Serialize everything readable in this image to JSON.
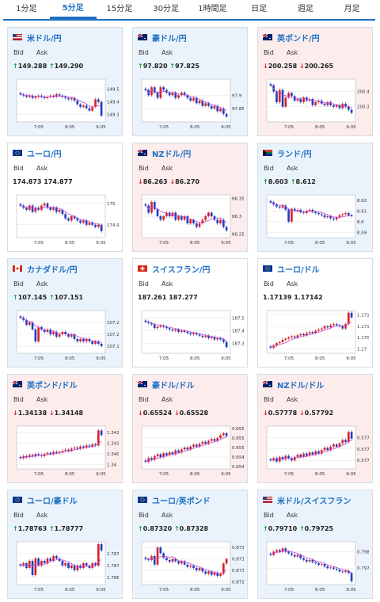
{
  "tabs": [
    {
      "label": "1分足",
      "active": false
    },
    {
      "label": "5分足",
      "active": true
    },
    {
      "label": "15分足",
      "active": false
    },
    {
      "label": "30分足",
      "active": false
    },
    {
      "label": "1時間足",
      "active": false
    },
    {
      "label": "日足",
      "active": false
    },
    {
      "label": "週足",
      "active": false
    },
    {
      "label": "月足",
      "active": false
    }
  ],
  "labels": {
    "bid": "Bid",
    "ask": "Ask"
  },
  "colors": {
    "up_bg": "#eaf3fb",
    "down_bg": "#fcecec",
    "bull": "#d9202a",
    "bear": "#1f3fbf",
    "ma": "#c54bd0",
    "up_arrow": "#1a9b3c",
    "down_arrow": "#d9202a"
  },
  "pairs": [
    {
      "name": "米ドル/円",
      "flag": "us-jp-flag-icon",
      "trend": "up",
      "bid": "149.288",
      "ask": "149.290",
      "chart_data": {
        "type": "candlestick",
        "x_ticks": [
          "7:05",
          "8:05",
          "9:05"
        ],
        "y_ticks": [
          "149.5",
          "149.4",
          "149.3"
        ],
        "y_range": [
          149.24,
          149.58
        ],
        "close": [
          149.46,
          149.45,
          149.44,
          149.45,
          149.43,
          149.44,
          149.45,
          149.44,
          149.43,
          149.44,
          149.45,
          149.44,
          149.46,
          149.45,
          149.44,
          149.43,
          149.42,
          149.43,
          149.41,
          149.38,
          149.36,
          149.37,
          149.35,
          149.33,
          149.36,
          149.42,
          149.4,
          149.29
        ]
      }
    },
    {
      "name": "豪ドル/円",
      "flag": "au-jp-flag-icon",
      "trend": "up",
      "bid": "97.820",
      "ask": "97.825",
      "chart_data": {
        "type": "candlestick",
        "x_ticks": [
          "7:05",
          "8:05",
          "9:05"
        ],
        "y_ticks": [
          "97.9",
          "97.85"
        ],
        "y_range": [
          97.8,
          97.96
        ],
        "close": [
          97.92,
          97.9,
          97.93,
          97.91,
          97.89,
          97.93,
          97.92,
          97.91,
          97.9,
          97.91,
          97.89,
          97.9,
          97.91,
          97.9,
          97.89,
          97.88,
          97.89,
          97.87,
          97.88,
          97.86,
          97.87,
          97.86,
          97.85,
          97.86,
          97.84,
          97.85,
          97.83,
          97.82
        ]
      }
    },
    {
      "name": "英ポンド/円",
      "flag": "gb-jp-flag-icon",
      "trend": "down",
      "bid": "200.258",
      "ask": "200.265",
      "chart_data": {
        "type": "candlestick",
        "x_ticks": [
          "7:05",
          "8:05",
          "9:05"
        ],
        "y_ticks": [
          "200.4",
          "200.3"
        ],
        "y_range": [
          200.2,
          200.48
        ],
        "close": [
          200.44,
          200.4,
          200.33,
          200.41,
          200.3,
          200.36,
          200.39,
          200.37,
          200.34,
          200.35,
          200.33,
          200.36,
          200.34,
          200.35,
          200.31,
          200.33,
          200.34,
          200.32,
          200.31,
          200.33,
          200.31,
          200.3,
          200.31,
          200.29,
          200.32,
          200.3,
          200.28,
          200.26
        ]
      }
    },
    {
      "name": "ユーロ/円",
      "flag": "eu-jp-flag-icon",
      "trend": "flat",
      "bid": "174.873",
      "ask": "174.877",
      "chart_data": {
        "type": "candlestick",
        "x_ticks": [
          "7:05",
          "8:05",
          "9:05"
        ],
        "y_ticks": [
          "175",
          "174.9"
        ],
        "y_range": [
          174.84,
          175.04
        ],
        "close": [
          174.99,
          174.98,
          174.97,
          174.99,
          174.96,
          174.98,
          174.97,
          174.99,
          175.0,
          174.98,
          174.97,
          174.98,
          174.96,
          174.97,
          174.95,
          174.93,
          174.92,
          174.94,
          174.93,
          174.92,
          174.91,
          174.92,
          174.9,
          174.91,
          174.9,
          174.89,
          174.9,
          174.87
        ]
      }
    },
    {
      "name": "NZドル/円",
      "flag": "nz-jp-flag-icon",
      "trend": "down",
      "bid": "86.263",
      "ask": "86.270",
      "chart_data": {
        "type": "candlestick",
        "x_ticks": [
          "7:05",
          "8:05",
          "9:05"
        ],
        "y_ticks": [
          "86.35",
          "86.3",
          "86.25"
        ],
        "y_range": [
          86.24,
          86.36
        ],
        "close": [
          86.33,
          86.31,
          86.34,
          86.32,
          86.3,
          86.29,
          86.3,
          86.31,
          86.3,
          86.31,
          86.29,
          86.3,
          86.29,
          86.3,
          86.28,
          86.29,
          86.28,
          86.27,
          86.28,
          86.29,
          86.3,
          86.31,
          86.3,
          86.29,
          86.28,
          86.29,
          86.27,
          86.26
        ]
      }
    },
    {
      "name": "ランド/円",
      "flag": "za-jp-flag-icon",
      "trend": "up",
      "bid": "8.603",
      "ask": "8.612",
      "chart_data": {
        "type": "candlestick",
        "x_ticks": [
          "7:05",
          "8:05",
          "9:05"
        ],
        "y_ticks": [
          "8.62",
          "8.61",
          "8.6",
          "8.59"
        ],
        "y_range": [
          8.585,
          8.625
        ],
        "close": [
          8.618,
          8.616,
          8.614,
          8.613,
          8.615,
          8.611,
          8.6,
          8.612,
          8.61,
          8.611,
          8.609,
          8.608,
          8.61,
          8.611,
          8.609,
          8.608,
          8.607,
          8.606,
          8.604,
          8.605,
          8.603,
          8.602,
          8.604,
          8.606,
          8.607,
          8.608,
          8.606,
          8.605
        ]
      }
    },
    {
      "name": "カナダドル/円",
      "flag": "ca-jp-flag-icon",
      "trend": "up",
      "bid": "107.145",
      "ask": "107.151",
      "chart_data": {
        "type": "candlestick",
        "x_ticks": [
          "7:05",
          "8:05",
          "9:05"
        ],
        "y_ticks": [
          "107.25",
          "107.2",
          "107.15"
        ],
        "y_range": [
          107.12,
          107.3
        ],
        "close": [
          107.27,
          107.26,
          107.24,
          107.25,
          107.22,
          107.17,
          107.23,
          107.22,
          107.21,
          107.22,
          107.2,
          107.21,
          107.19,
          107.2,
          107.21,
          107.2,
          107.19,
          107.2,
          107.18,
          107.17,
          107.18,
          107.17,
          107.18,
          107.17,
          107.16,
          107.17,
          107.16,
          107.15
        ]
      }
    },
    {
      "name": "スイスフラン/円",
      "flag": "ch-jp-flag-icon",
      "trend": "flat",
      "bid": "187.261",
      "ask": "187.277",
      "chart_data": {
        "type": "candlestick",
        "x_ticks": [
          "7:05",
          "8:05",
          "9:05"
        ],
        "y_ticks": [
          "187.5",
          "187.4",
          "187.3"
        ],
        "y_range": [
          187.22,
          187.56
        ],
        "close": [
          187.47,
          187.46,
          187.45,
          187.42,
          187.43,
          187.44,
          187.43,
          187.42,
          187.41,
          187.4,
          187.41,
          187.39,
          187.4,
          187.39,
          187.38,
          187.37,
          187.38,
          187.37,
          187.36,
          187.35,
          187.36,
          187.34,
          187.35,
          187.33,
          187.34,
          187.33,
          187.31,
          187.27
        ]
      }
    },
    {
      "name": "ユーロ/ドル",
      "flag": "eu-us-flag-icon",
      "trend": "flat",
      "bid": "1.17139",
      "ask": "1.17142",
      "chart_data": {
        "type": "candlestick",
        "x_ticks": [
          "7:05",
          "8:05",
          "9:05"
        ],
        "y_ticks": [
          "1.1715",
          "1.171",
          "1.1705",
          "1.17"
        ],
        "y_range": [
          1.1698,
          1.1717
        ],
        "close": [
          1.17005,
          1.17015,
          1.17025,
          1.1703,
          1.1704,
          1.17045,
          1.1705,
          1.17055,
          1.1705,
          1.1706,
          1.17065,
          1.1706,
          1.1707,
          1.17075,
          1.1707,
          1.1708,
          1.17085,
          1.1709,
          1.171,
          1.17095,
          1.17105,
          1.1711,
          1.17105,
          1.171,
          1.1709,
          1.1711,
          1.1716,
          1.17139
        ]
      }
    },
    {
      "name": "英ポンド/ドル",
      "flag": "gb-us-flag-icon",
      "trend": "down",
      "bid": "1.34138",
      "ask": "1.34148",
      "chart_data": {
        "type": "candlestick",
        "x_ticks": [
          "7:05",
          "8:05",
          "9:05"
        ],
        "y_ticks": [
          "1.3415",
          "1.341",
          "1.3405",
          "1.34"
        ],
        "y_range": [
          1.3398,
          1.3418
        ],
        "close": [
          1.3403,
          1.3404,
          1.34035,
          1.34045,
          1.3404,
          1.3405,
          1.34045,
          1.3404,
          1.3405,
          1.34055,
          1.3405,
          1.3406,
          1.34055,
          1.3406,
          1.34065,
          1.3407,
          1.34065,
          1.34075,
          1.3408,
          1.34075,
          1.34085,
          1.3408,
          1.3409,
          1.34085,
          1.34095,
          1.3409,
          1.3416,
          1.34138
        ]
      }
    },
    {
      "name": "豪ドル/ドル",
      "flag": "au-us-flag-icon",
      "trend": "down",
      "bid": "0.65524",
      "ask": "0.65528",
      "chart_data": {
        "type": "candlestick",
        "x_ticks": [
          "7:05",
          "8:05",
          "9:05"
        ],
        "y_ticks": [
          "0.6554",
          "0.6552",
          "0.655",
          "0.6548",
          "0.6546"
        ],
        "y_range": [
          0.65455,
          0.65545
        ],
        "close": [
          0.6547,
          0.65478,
          0.65474,
          0.65482,
          0.65486,
          0.6548,
          0.65488,
          0.65484,
          0.6549,
          0.65486,
          0.65494,
          0.6549,
          0.65496,
          0.655,
          0.65496,
          0.65502,
          0.65506,
          0.65502,
          0.65508,
          0.65512,
          0.65508,
          0.65514,
          0.65518,
          0.65514,
          0.6552,
          0.65526,
          0.6553,
          0.65524
        ]
      }
    },
    {
      "name": "NZドル/ドル",
      "flag": "nz-us-flag-icon",
      "trend": "down",
      "bid": "0.57778",
      "ask": "0.57792",
      "chart_data": {
        "type": "candlestick",
        "x_ticks": [
          "7:05",
          "8:05",
          "9:05"
        ],
        "y_ticks": [
          "0.5778",
          "0.5776",
          "0.5774"
        ],
        "y_range": [
          0.57725,
          0.578
        ],
        "close": [
          0.5774,
          0.57744,
          0.57738,
          0.57746,
          0.57742,
          0.57748,
          0.57744,
          0.5774,
          0.57746,
          0.5775,
          0.57746,
          0.57752,
          0.57748,
          0.57754,
          0.5775,
          0.57756,
          0.57752,
          0.57758,
          0.57762,
          0.57758,
          0.57764,
          0.57768,
          0.57764,
          0.5777,
          0.57776,
          0.57772,
          0.5779,
          0.57778
        ]
      }
    },
    {
      "name": "ユーロ/豪ドル",
      "flag": "eu-au-flag-icon",
      "trend": "up",
      "bid": "1.78763",
      "ask": "1.78777",
      "chart_data": {
        "type": "candlestick",
        "x_ticks": [
          "7:05",
          "8:05",
          "9:05"
        ],
        "y_ticks": [
          "1.7875",
          "1.787",
          "1.7865"
        ],
        "y_range": [
          1.7862,
          1.788
        ],
        "close": [
          1.787,
          1.7871,
          1.7869,
          1.7872,
          1.7866,
          1.7873,
          1.787,
          1.7872,
          1.7871,
          1.7873,
          1.7872,
          1.7874,
          1.7873,
          1.7872,
          1.787,
          1.7871,
          1.7869,
          1.787,
          1.7868,
          1.787,
          1.7869,
          1.7871,
          1.787,
          1.7869,
          1.7871,
          1.787,
          1.7879,
          1.78763
        ]
      }
    },
    {
      "name": "ユーロ/英ポンド",
      "flag": "eu-gb-flag-icon",
      "trend": "up",
      "bid": "0.87320",
      "ask": "0.87328",
      "chart_data": {
        "type": "candlestick",
        "x_ticks": [
          "7:05",
          "8:05",
          "9:05"
        ],
        "y_ticks": [
          "0.8734",
          "0.8732",
          "0.873",
          "0.8728"
        ],
        "y_range": [
          0.87275,
          0.8735
        ],
        "close": [
          0.8732,
          0.87318,
          0.87325,
          0.8731,
          0.8734,
          0.8733,
          0.87322,
          0.87318,
          0.87315,
          0.8732,
          0.87316,
          0.87312,
          0.87316,
          0.8731,
          0.87306,
          0.87308,
          0.87304,
          0.873,
          0.87304,
          0.87298,
          0.87294,
          0.87298,
          0.87292,
          0.87296,
          0.8729,
          0.87294,
          0.87312,
          0.8732
        ]
      }
    },
    {
      "name": "米ドル/スイスフラン",
      "flag": "us-ch-flag-icon",
      "trend": "up",
      "bid": "0.79710",
      "ask": "0.79725",
      "chart_data": {
        "type": "candlestick",
        "x_ticks": [
          "7:05",
          "8:05",
          "9:05"
        ],
        "y_ticks": [
          "0.798",
          "0.7975"
        ],
        "y_range": [
          0.797,
          0.7983
        ],
        "close": [
          0.7979,
          0.798,
          0.79805,
          0.798,
          0.7981,
          0.798,
          0.79795,
          0.7979,
          0.79785,
          0.7979,
          0.7978,
          0.79775,
          0.7977,
          0.79775,
          0.79768,
          0.79765,
          0.7976,
          0.79762,
          0.79755,
          0.7975,
          0.79752,
          0.79748,
          0.79745,
          0.7974,
          0.79738,
          0.79742,
          0.79735,
          0.7971
        ]
      }
    }
  ]
}
